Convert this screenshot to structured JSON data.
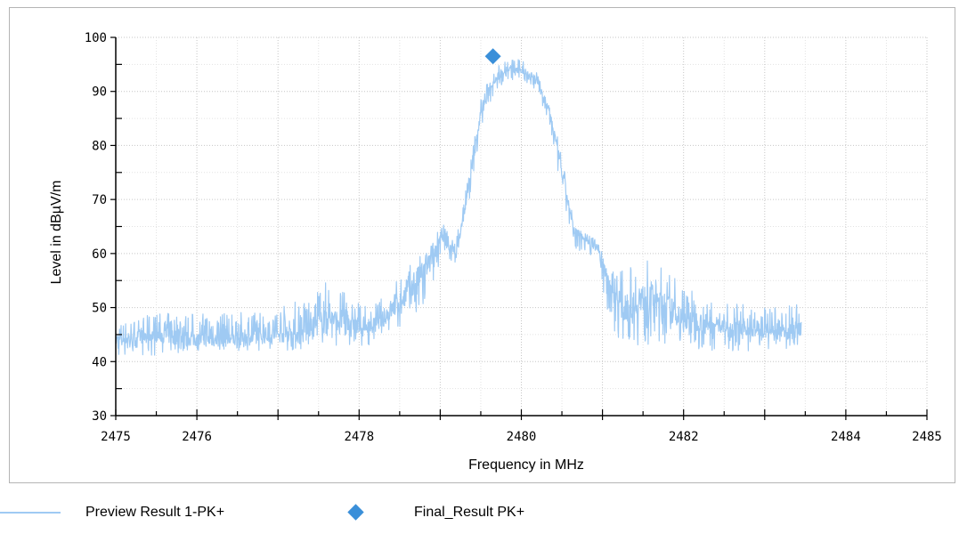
{
  "chart_data": {
    "type": "line",
    "title": "",
    "xlabel": "Frequency in MHz",
    "ylabel": "Level in dBµV/m",
    "xlim": [
      2475,
      2485
    ],
    "ylim": [
      30,
      100
    ],
    "x_ticks": [
      2475,
      2476,
      2478,
      2480,
      2482,
      2484,
      2485
    ],
    "y_ticks": [
      30,
      40,
      50,
      60,
      70,
      80,
      90,
      100
    ],
    "grid": true,
    "legend_position": "bottom-left",
    "series": [
      {
        "name": "Preview Result 1-PK+",
        "color": "#9fcaf3",
        "x": [
          2475.0,
          2475.5,
          2476.0,
          2476.5,
          2477.0,
          2477.3,
          2477.6,
          2477.9,
          2478.1,
          2478.3,
          2478.5,
          2478.7,
          2478.85,
          2479.0,
          2479.2,
          2479.35,
          2479.5,
          2479.65,
          2479.8,
          2480.0,
          2480.2,
          2480.35,
          2480.5,
          2480.65,
          2480.8,
          2480.95,
          2481.1,
          2481.25,
          2481.4,
          2481.6,
          2481.8,
          2482.0,
          2482.3,
          2482.6,
          2482.9,
          2483.2,
          2483.45
        ],
        "y": [
          44,
          45,
          44,
          44,
          45,
          45,
          48,
          47,
          46,
          48,
          51,
          55,
          58,
          63,
          60,
          72,
          86,
          92,
          94,
          94,
          92,
          86,
          75,
          64,
          63,
          61,
          54,
          50,
          51,
          52,
          50,
          48,
          47,
          46,
          46,
          45,
          46
        ],
        "band_min": [
          41,
          41,
          42,
          42,
          42,
          42,
          43,
          43,
          43,
          44,
          45,
          47,
          50,
          59,
          58,
          69,
          83,
          89,
          92,
          92,
          89,
          83,
          71,
          61,
          60,
          55,
          47,
          43,
          43,
          43,
          43,
          43,
          42,
          42,
          42,
          42,
          43
        ],
        "band_max": [
          47,
          49,
          49,
          49,
          50,
          52,
          55,
          52,
          50,
          52,
          56,
          59,
          61,
          66,
          63,
          75,
          89,
          94,
          96,
          96,
          95,
          88,
          78,
          66,
          64,
          62,
          58,
          57,
          58,
          59,
          57,
          54,
          52,
          51,
          50,
          50,
          51
        ]
      },
      {
        "name": "Final_Result PK+",
        "type": "scatter",
        "marker": "diamond",
        "color": "#3a8fd9",
        "x": [
          2479.65
        ],
        "y": [
          96.5
        ]
      }
    ]
  }
}
